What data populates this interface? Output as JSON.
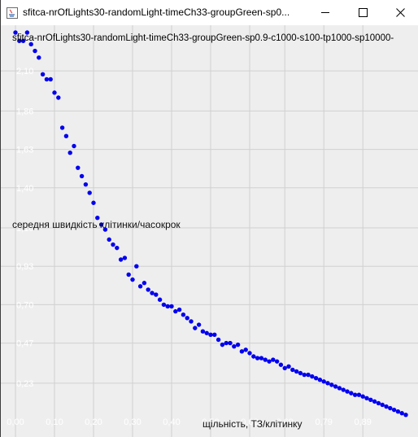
{
  "window": {
    "title": "sfitca-nrOfLights30-randomLight-timeCh33-groupGreen-sp0...",
    "app_icon": "java-icon",
    "controls": {
      "minimize": "minimize-icon",
      "maximize": "maximize-icon",
      "close": "close-icon"
    }
  },
  "chart_data": {
    "type": "scatter",
    "title": "sfitca-nrOfLights30-randomLight-timeCh33-groupGreen-sp0.9-c1000-s100-tp1000-sp10000-",
    "xlabel": "щільність, ТЗ/клітинку",
    "ylabel": "середня швидкість клітинки/часокрок",
    "xlim": [
      0.0,
      1.0
    ],
    "ylim": [
      0.0,
      2.33
    ],
    "x_ticks": [
      "0,00",
      "0,10",
      "0,20",
      "0,30",
      "0,40",
      "0,50",
      "0,60",
      "0,69",
      "0,79",
      "0,89"
    ],
    "x_tick_values": [
      0.0,
      0.1,
      0.2,
      0.3,
      0.4,
      0.5,
      0.6,
      0.69,
      0.79,
      0.89
    ],
    "y_ticks": [
      "0,23",
      "0,47",
      "0,70",
      "0,93",
      "1,16",
      "1,40",
      "1,63",
      "1,86",
      "2,10"
    ],
    "y_tick_values": [
      0.23,
      0.47,
      0.7,
      0.93,
      1.16,
      1.4,
      1.63,
      1.86,
      2.1
    ],
    "grid": true,
    "point_color": "#0000ee",
    "background": "#eeeeee",
    "grid_color": "#d0d0d0",
    "tick_color": "#ffffff",
    "x": [
      0.0,
      0.01,
      0.02,
      0.03,
      0.04,
      0.05,
      0.06,
      0.07,
      0.08,
      0.09,
      0.1,
      0.11,
      0.12,
      0.13,
      0.14,
      0.15,
      0.16,
      0.17,
      0.18,
      0.19,
      0.2,
      0.21,
      0.22,
      0.23,
      0.24,
      0.25,
      0.26,
      0.27,
      0.28,
      0.29,
      0.3,
      0.31,
      0.32,
      0.33,
      0.34,
      0.35,
      0.36,
      0.37,
      0.38,
      0.39,
      0.4,
      0.41,
      0.42,
      0.43,
      0.44,
      0.45,
      0.46,
      0.47,
      0.48,
      0.49,
      0.5,
      0.51,
      0.52,
      0.53,
      0.54,
      0.55,
      0.56,
      0.57,
      0.58,
      0.59,
      0.6,
      0.61,
      0.62,
      0.63,
      0.64,
      0.65,
      0.66,
      0.67,
      0.68,
      0.69,
      0.7,
      0.71,
      0.72,
      0.73,
      0.74,
      0.75,
      0.76,
      0.77,
      0.78,
      0.79,
      0.8,
      0.81,
      0.82,
      0.83,
      0.84,
      0.85,
      0.86,
      0.87,
      0.88,
      0.89,
      0.9,
      0.91,
      0.92,
      0.93,
      0.94,
      0.95,
      0.96,
      0.97,
      0.98,
      0.99,
      1.0
    ],
    "y": [
      2.33,
      2.28,
      2.28,
      2.33,
      2.26,
      2.22,
      2.18,
      2.08,
      2.05,
      2.05,
      1.97,
      1.94,
      1.76,
      1.71,
      1.61,
      1.65,
      1.52,
      1.47,
      1.42,
      1.37,
      1.31,
      1.22,
      1.18,
      1.15,
      1.09,
      1.06,
      1.04,
      0.97,
      0.98,
      0.88,
      0.85,
      0.93,
      0.81,
      0.83,
      0.79,
      0.77,
      0.76,
      0.73,
      0.7,
      0.69,
      0.69,
      0.66,
      0.67,
      0.64,
      0.62,
      0.6,
      0.56,
      0.58,
      0.54,
      0.53,
      0.52,
      0.52,
      0.49,
      0.46,
      0.47,
      0.47,
      0.45,
      0.46,
      0.42,
      0.43,
      0.41,
      0.39,
      0.38,
      0.38,
      0.37,
      0.36,
      0.37,
      0.36,
      0.34,
      0.32,
      0.33,
      0.31,
      0.3,
      0.29,
      0.28,
      0.28,
      0.27,
      0.26,
      0.25,
      0.24,
      0.23,
      0.22,
      0.21,
      0.2,
      0.19,
      0.18,
      0.17,
      0.16,
      0.16,
      0.15,
      0.14,
      0.13,
      0.12,
      0.11,
      0.1,
      0.09,
      0.08,
      0.07,
      0.06,
      0.05,
      0.04
    ]
  }
}
